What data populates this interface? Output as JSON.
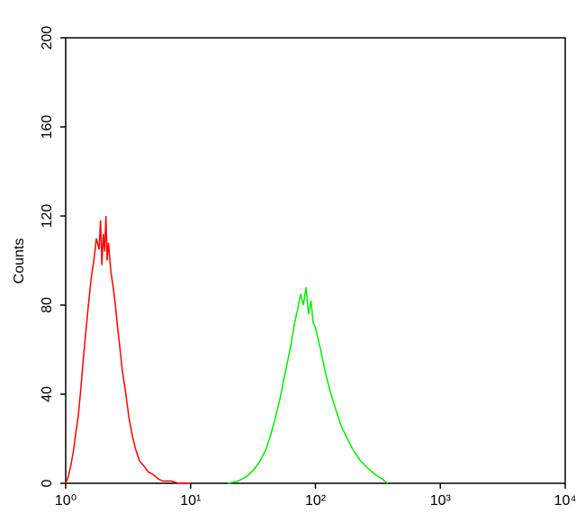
{
  "chart_data": {
    "type": "line",
    "ylabel": "Counts",
    "xscale": "log",
    "xlim": [
      1,
      10000
    ],
    "ylim": [
      0,
      200
    ],
    "xticks": [
      {
        "value": 1,
        "label": "10⁰"
      },
      {
        "value": 10,
        "label": "10¹"
      },
      {
        "value": 100,
        "label": "10²"
      },
      {
        "value": 1000,
        "label": "10³"
      },
      {
        "value": 10000,
        "label": "10⁴"
      }
    ],
    "yticks": [
      0,
      40,
      80,
      120,
      160,
      200
    ],
    "series": [
      {
        "color": "#ff0000",
        "x": [
          1.0,
          1.05,
          1.1,
          1.15,
          1.2,
          1.26,
          1.32,
          1.38,
          1.45,
          1.52,
          1.6,
          1.68,
          1.76,
          1.85,
          1.9,
          1.95,
          2.0,
          2.05,
          2.1,
          2.15,
          2.2,
          2.3,
          2.4,
          2.5,
          2.6,
          2.7,
          2.85,
          3.0,
          3.2,
          3.4,
          3.6,
          3.9,
          4.2,
          4.6,
          5.0,
          5.5,
          6.0,
          7.0,
          8.0,
          10
        ],
        "values": [
          0,
          3,
          8,
          14,
          22,
          30,
          42,
          55,
          68,
          80,
          92,
          100,
          110,
          105,
          118,
          98,
          112,
          104,
          120,
          100,
          108,
          95,
          88,
          80,
          70,
          62,
          50,
          42,
          30,
          22,
          16,
          10,
          8,
          5,
          4,
          2,
          1,
          1,
          0,
          0
        ]
      },
      {
        "color": "#00ee00",
        "x": [
          20,
          24,
          28,
          32,
          36,
          40,
          44,
          48,
          52,
          56,
          60,
          64,
          68,
          72,
          76,
          80,
          84,
          88,
          92,
          96,
          100,
          110,
          120,
          130,
          140,
          160,
          180,
          200,
          230,
          260,
          300,
          340,
          380
        ],
        "values": [
          0,
          1,
          3,
          6,
          10,
          15,
          22,
          30,
          38,
          47,
          55,
          63,
          72,
          78,
          85,
          80,
          88,
          76,
          82,
          72,
          70,
          60,
          50,
          42,
          36,
          26,
          20,
          15,
          10,
          7,
          4,
          2,
          0
        ]
      }
    ]
  }
}
